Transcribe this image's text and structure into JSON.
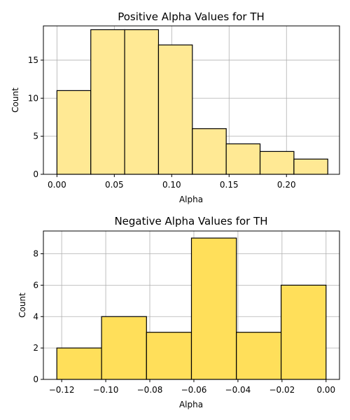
{
  "chart_data": [
    {
      "type": "bar",
      "title": "Positive Alpha Values for TH",
      "xlabel": "Alpha",
      "ylabel": "Count",
      "bar_color": "#FFE994",
      "edge_color": "#000000",
      "grid": true,
      "xlim": [
        -0.0118,
        0.2462
      ],
      "ylim": [
        0,
        19.5
      ],
      "xticks": [
        {
          "value": 0.0,
          "label": "0.00"
        },
        {
          "value": 0.05,
          "label": "0.05"
        },
        {
          "value": 0.1,
          "label": "0.10"
        },
        {
          "value": 0.15,
          "label": "0.15"
        },
        {
          "value": 0.2,
          "label": "0.20"
        }
      ],
      "yticks": [
        {
          "value": 0,
          "label": "0"
        },
        {
          "value": 5,
          "label": "5"
        },
        {
          "value": 10,
          "label": "10"
        },
        {
          "value": 15,
          "label": "15"
        }
      ],
      "bins": [
        {
          "x0": 0.0,
          "x1": 0.0295,
          "count": 11
        },
        {
          "x0": 0.0295,
          "x1": 0.059,
          "count": 19
        },
        {
          "x0": 0.059,
          "x1": 0.0885,
          "count": 19
        },
        {
          "x0": 0.0885,
          "x1": 0.118,
          "count": 17
        },
        {
          "x0": 0.118,
          "x1": 0.1475,
          "count": 6
        },
        {
          "x0": 0.1475,
          "x1": 0.177,
          "count": 4
        },
        {
          "x0": 0.177,
          "x1": 0.2065,
          "count": 3
        },
        {
          "x0": 0.2065,
          "x1": 0.236,
          "count": 2
        }
      ]
    },
    {
      "type": "bar",
      "title": "Negative Alpha Values for TH",
      "xlabel": "Alpha",
      "ylabel": "Count",
      "bar_color": "#FFDF5A",
      "edge_color": "#000000",
      "grid": true,
      "xlim": [
        -0.1283,
        0.0061
      ],
      "ylim": [
        0,
        9.45
      ],
      "xticks": [
        {
          "value": -0.12,
          "label": "−0.12"
        },
        {
          "value": -0.1,
          "label": "−0.10"
        },
        {
          "value": -0.08,
          "label": "−0.08"
        },
        {
          "value": -0.06,
          "label": "−0.06"
        },
        {
          "value": -0.04,
          "label": "−0.04"
        },
        {
          "value": -0.02,
          "label": "−0.02"
        },
        {
          "value": 0.0,
          "label": "0.00"
        }
      ],
      "yticks": [
        {
          "value": 0,
          "label": "0"
        },
        {
          "value": 2,
          "label": "2"
        },
        {
          "value": 4,
          "label": "4"
        },
        {
          "value": 6,
          "label": "6"
        },
        {
          "value": 8,
          "label": "8"
        }
      ],
      "bins": [
        {
          "x0": -0.1222,
          "x1": -0.1019,
          "count": 2
        },
        {
          "x0": -0.1019,
          "x1": -0.0815,
          "count": 4
        },
        {
          "x0": -0.0815,
          "x1": -0.0611,
          "count": 3
        },
        {
          "x0": -0.0611,
          "x1": -0.0407,
          "count": 9
        },
        {
          "x0": -0.0407,
          "x1": -0.0204,
          "count": 3
        },
        {
          "x0": -0.0204,
          "x1": 0.0,
          "count": 6
        }
      ]
    }
  ]
}
